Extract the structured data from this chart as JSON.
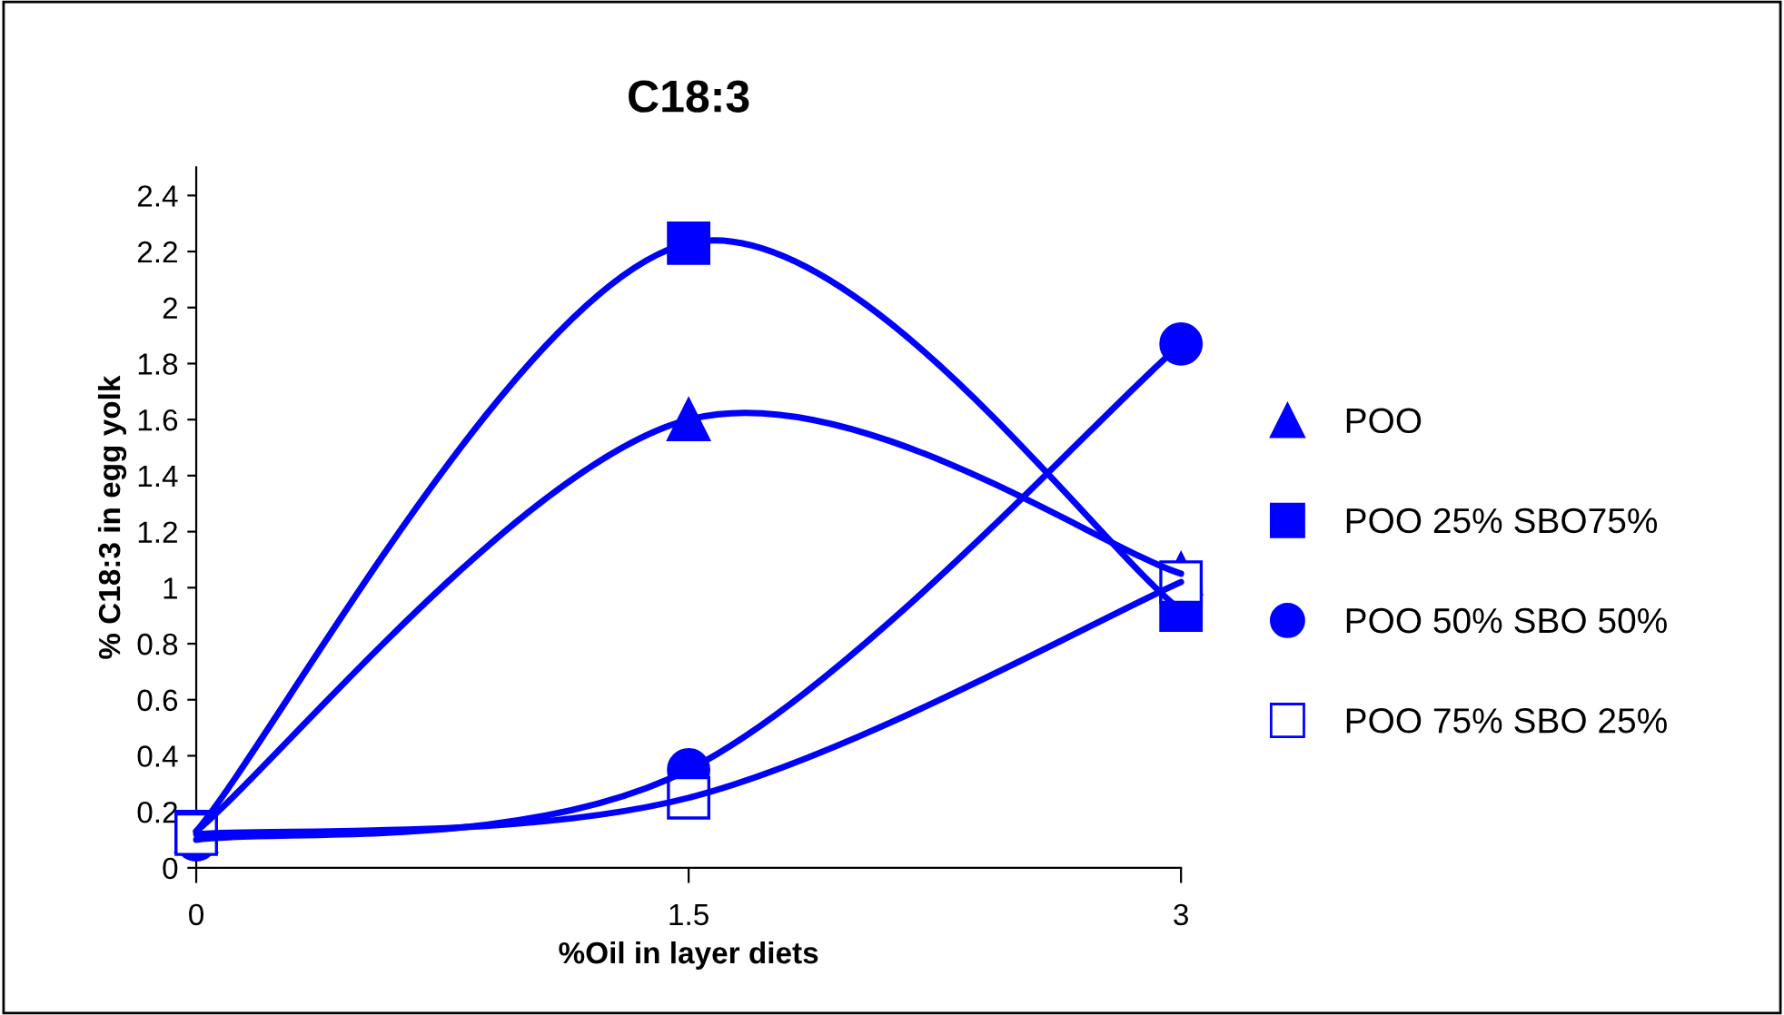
{
  "chart_data": {
    "type": "line",
    "title": "C18:3",
    "xlabel": "%Oil in layer diets",
    "ylabel": "% C18:3 in egg yolk",
    "x": [
      0,
      1.5,
      3
    ],
    "xlim": [
      0,
      3
    ],
    "xticks": [
      0,
      1.5,
      3
    ],
    "ylim": [
      0,
      2.5
    ],
    "yticks": [
      0,
      0.2,
      0.4,
      0.6,
      0.8,
      1,
      1.2,
      1.4,
      1.6,
      1.8,
      2,
      2.2,
      2.4
    ],
    "grid": false,
    "legend": "right",
    "line_style": "solid",
    "series": [
      {
        "name": "POO",
        "color": "#0000ff",
        "marker": "triangle",
        "values": [
          0.13,
          1.6,
          1.05
        ]
      },
      {
        "name": "POO 25% SBO75%",
        "color": "#0000ff",
        "marker": "square",
        "values": [
          0.13,
          2.23,
          0.92
        ]
      },
      {
        "name": "POO 50% SBO 50%",
        "color": "#0000ff",
        "marker": "circle",
        "values": [
          0.1,
          0.35,
          1.87
        ]
      },
      {
        "name": "POO 75% SBO 25%",
        "color": "#0000ff",
        "marker": "square-open",
        "values": [
          0.12,
          0.25,
          1.02
        ]
      }
    ]
  }
}
